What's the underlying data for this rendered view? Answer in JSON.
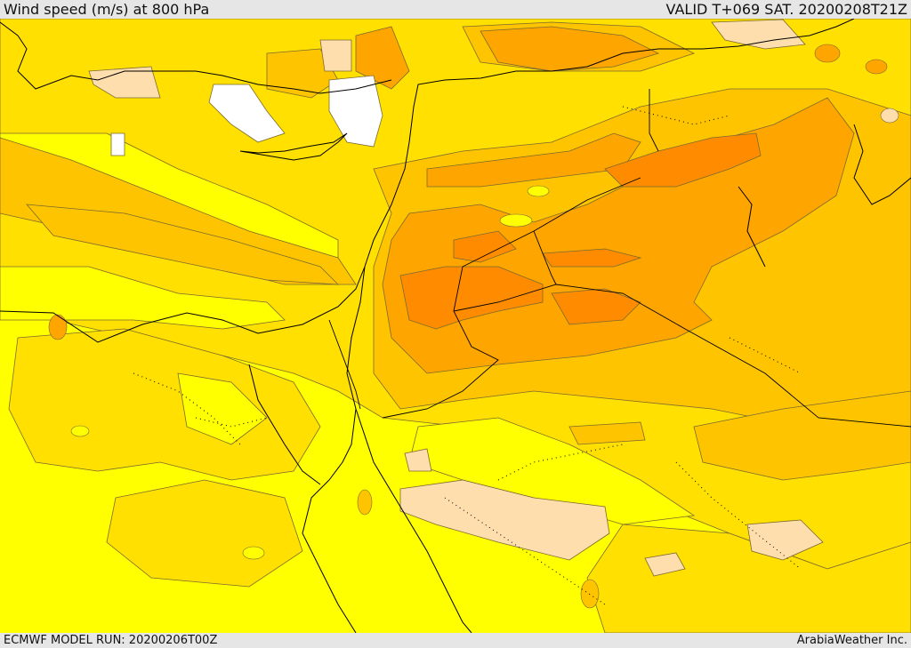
{
  "header": {
    "title": "Wind speed (m/s) at 800 hPa",
    "valid_time": "VALID T+069 SAT. 20200208T21Z"
  },
  "footer": {
    "model_run": "ECMWF MODEL RUN: 20200206T00Z",
    "credit": "ArabiaWeather Inc."
  },
  "map": {
    "variable": "wind speed",
    "level": "800 hPa",
    "palette": {
      "calm": "#ffffff",
      "very_light": "#ffdead",
      "light": "#ffff00",
      "moderate": "#ffe000",
      "fresh": "#ffc400",
      "strong": "#ffa500",
      "very_strong": "#ff8c00",
      "extreme": "#ff7a00"
    },
    "boundary_color": "#000000",
    "contour_color": "#7a6a30"
  }
}
